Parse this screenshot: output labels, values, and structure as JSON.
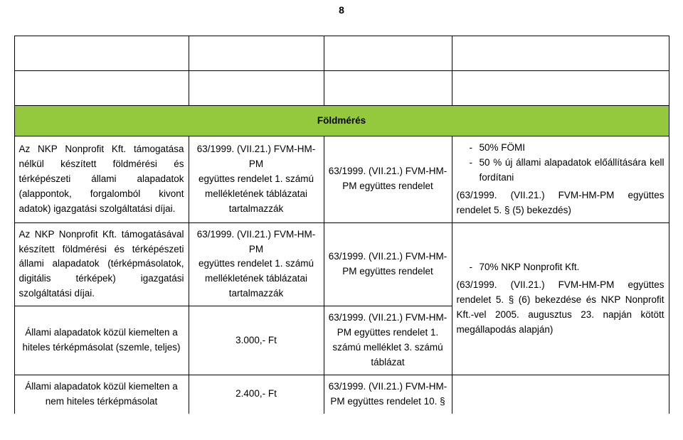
{
  "page_number": "8",
  "header": "Földmérés",
  "rows": {
    "r1": {
      "col1": "Az NKP Nonprofit Kft. támogatása nélkül készített földmérési és térképészeti állami alapadatok (alappontok, forgalomból kivont adatok) igazgatási szolgáltatási díjai.",
      "col2_line1": "63/1999. (VII.21.) FVM-HM-PM",
      "col2_line2": "együttes rendelet 1. számú",
      "col2_line3": "mellékletének táblázatai",
      "col2_line4": "tartalmazzák",
      "col3_line1": "63/1999. (VII.21.) FVM-HM-",
      "col3_line2": "PM együttes rendelet",
      "col4_bullet1": "50% FÖMI",
      "col4_bullet2": "50 % új állami alapadatok előállítására kell fordítani",
      "col4_tail": "(63/1999. (VII.21.) FVM-HM-PM együttes rendelet 5. § (5) bekezdés)"
    },
    "r2": {
      "col1": "Az NKP Nonprofit Kft. támogatásával készített földmérési és térképészeti állami alapadatok (térképmásolatok, digitális térképek) igazgatási szolgáltatási díjai.",
      "col2_line1": "63/1999. (VII.21.) FVM-HM-PM",
      "col2_line2": "együttes rendelet 1. számú",
      "col2_line3": "mellékletének táblázatai",
      "col2_line4": "tartalmazzák",
      "col3_line1": "63/1999. (VII.21.) FVM-HM-",
      "col3_line2": "PM együttes rendelet"
    },
    "r3": {
      "col1": "Állami alapadatok közül kiemelten a hiteles térképmásolat (szemle, teljes)",
      "col2": "3.000,- Ft",
      "col3_line1": "63/1999. (VII.21.) FVM-HM-",
      "col3_line2": "PM együttes rendelet 1.",
      "col3_line3": "számú melléklet 3. számú",
      "col3_line4": "táblázat"
    },
    "r23_col4_bullet": "70% NKP Nonprofit Kft.",
    "r23_col4_tail": "(63/1999. (VII.21.) FVM-HM-PM együttes rendelet 5. § (6) bekezdése és NKP Nonprofit Kft.-vel 2005. augusztus 23. napján kötött megállapodás alapján)",
    "r4": {
      "col1": "Állami alapadatok közül kiemelten a nem hiteles térképmásolat",
      "col2": "2.400,- Ft",
      "col3_line1": "63/1999. (VII.21.) FVM-HM-",
      "col3_line2": "PM együttes rendelet 10. §"
    }
  },
  "colors": {
    "header_bg": "#94c93d",
    "text": "#000000",
    "page_bg": "#ffffff"
  },
  "typography": {
    "font_family": "Arial",
    "base_size_pt": 10,
    "page_num_weight": "bold",
    "header_weight": "bold"
  }
}
